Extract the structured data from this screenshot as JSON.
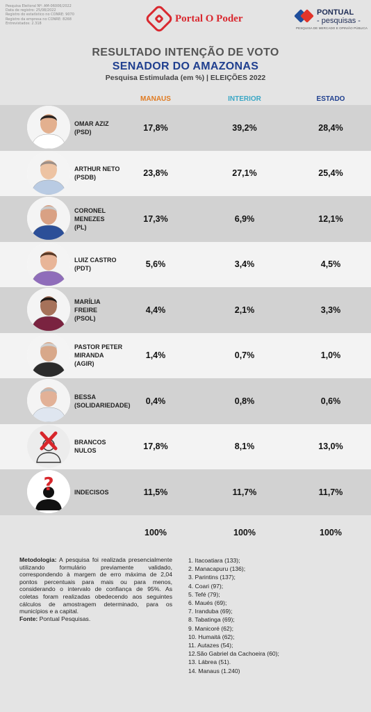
{
  "registro": [
    "Pesquisa Eleitoral Nº: AM-06006/2022",
    "Data de registro: 25/08/2022",
    "Registro do estatístico no CONRE: 9070",
    "Registro da empresa no CONRE: 8268",
    "Entrevistados: 2.318"
  ],
  "logos": {
    "portal": "Portal O Poder",
    "pontual_name": "PONTUAL",
    "pontual_sub": "- pesquisas -",
    "pontual_tag": "PESQUISA DE MERCADO E OPINIÃO PÚBLICA"
  },
  "header": {
    "title": "RESULTADO INTENÇÃO DE VOTO",
    "subtitle": "SENADOR DO AMAZONAS",
    "note": "Pesquisa Estimulada (em %) | ELEIÇÕES 2022"
  },
  "columns": {
    "manaus": "MANAUS",
    "interior": "INTERIOR",
    "estado": "ESTADO"
  },
  "colors": {
    "manaus": "#e07b22",
    "interior": "#3aa7c5",
    "estado": "#1f3f8f",
    "title": "#1f3f8f",
    "brand_red": "#d9282f"
  },
  "rows": [
    {
      "name": "OMAR AZIZ\n(PSD)",
      "manaus": "17,8%",
      "interior": "39,2%",
      "estado": "28,4%",
      "avatar": "person-photo"
    },
    {
      "name": "ARTHUR NETO\n(PSDB)",
      "manaus": "23,8%",
      "interior": "27,1%",
      "estado": "25,4%",
      "avatar": "person-photo"
    },
    {
      "name": "CORONEL\nMENEZES\n(PL)",
      "manaus": "17,3%",
      "interior": "6,9%",
      "estado": "12,1%",
      "avatar": "person-photo"
    },
    {
      "name": "LUIZ CASTRO\n(PDT)",
      "manaus": "5,6%",
      "interior": "3,4%",
      "estado": "4,5%",
      "avatar": "person-photo"
    },
    {
      "name": "MARÍLIA\nFREIRE\n(PSOL)",
      "manaus": "4,4%",
      "interior": "2,1%",
      "estado": "3,3%",
      "avatar": "person-photo"
    },
    {
      "name": "PASTOR PETER\nMIRANDA\n(AGIR)",
      "manaus": "1,4%",
      "interior": "0,7%",
      "estado": "1,0%",
      "avatar": "person-photo"
    },
    {
      "name": "BESSA\n(SOLIDARIEDADE)",
      "manaus": "0,4%",
      "interior": "0,8%",
      "estado": "0,6%",
      "avatar": "person-photo"
    },
    {
      "name": "BRANCOS\nNULOS",
      "manaus": "17,8%",
      "interior": "8,1%",
      "estado": "13,0%",
      "avatar": "crossed-person-icon"
    },
    {
      "name": "INDECISOS",
      "manaus": "11,5%",
      "interior": "11,7%",
      "estado": "11,7%",
      "avatar": "question-person-icon"
    }
  ],
  "totals": {
    "manaus": "100%",
    "interior": "100%",
    "estado": "100%"
  },
  "methodology": {
    "label": "Metodologia:",
    "text": " A pesquisa foi realizada presencialmente utilizando formulário previamente validado, correspondendo à margem de erro máxima de 2,04 pontos percentuais para mais ou para menos, considerando o intervalo de confiança de 95%. As coletas foram realizadas obedecendo aos seguintes cálculos de amostragem determinado, para os municípios e a capital.",
    "source_label": "Fonte:",
    "source": " Pontual Pesquisas."
  },
  "municipios": [
    "1. Itacoatiara (133);",
    "2. Manacapuru (136);",
    "3. Parintins (137);",
    "4. Coari (97);",
    "5. Tefé (79);",
    "6. Maués (69);",
    "7. Iranduba (69);",
    "8. Tabatinga (69);",
    "9. Manicoré (62);",
    "10. Humaitá (62);",
    "11. Autazes (54);",
    "12.São Gabriel da Cachoeira (60);",
    "13. Lábrea (51).",
    "14. Manaus (1.240)"
  ]
}
